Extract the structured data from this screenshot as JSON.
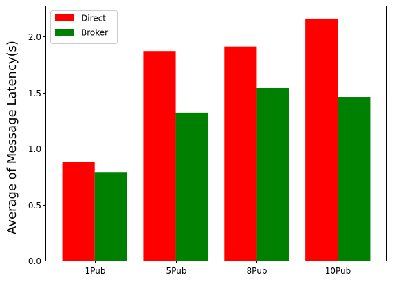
{
  "chart_data": {
    "type": "bar",
    "categories": [
      "1Pub",
      "5Pub",
      "8Pub",
      "10Pub"
    ],
    "series": [
      {
        "name": "Direct",
        "color": "#ff0000",
        "values": [
          0.88,
          1.87,
          1.91,
          2.16
        ]
      },
      {
        "name": "Broker",
        "color": "#008000",
        "values": [
          0.79,
          1.32,
          1.54,
          1.46
        ]
      }
    ],
    "title": "",
    "xlabel": "",
    "ylabel": "Average of Message Latency(s)",
    "ylim": [
      0,
      2.27
    ],
    "yticks": [
      0.0,
      0.5,
      1.0,
      1.5,
      2.0
    ],
    "ytick_labels": [
      "0.0",
      "0.5",
      "1.0",
      "1.5",
      "2.0"
    ],
    "grid": false,
    "legend": {
      "position": "top-left"
    }
  }
}
